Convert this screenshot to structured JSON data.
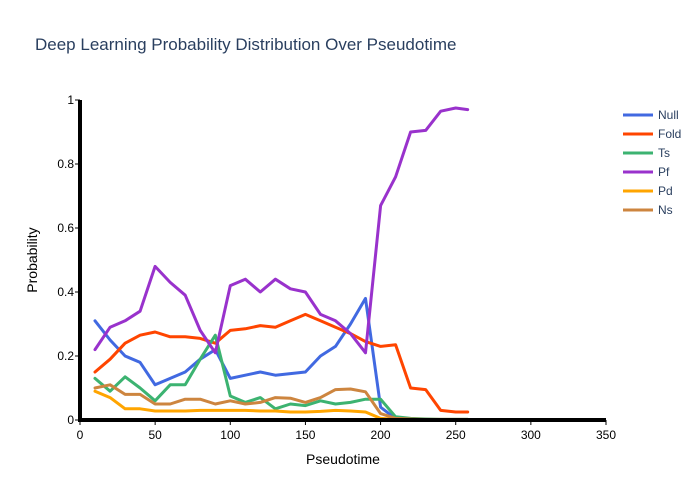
{
  "chart_data": {
    "type": "line",
    "title": "Deep Learning Probability Distribution Over Pseudotime",
    "xlabel": "Pseudotime",
    "ylabel": "Probability",
    "xlim": [
      0,
      350
    ],
    "ylim": [
      0,
      1
    ],
    "x_ticks": [
      "0",
      "50",
      "100",
      "150",
      "200",
      "250",
      "300",
      "350"
    ],
    "y_ticks": [
      "0",
      "0.2",
      "0.4",
      "0.6",
      "0.8",
      "1"
    ],
    "grid": false,
    "legend_position": "top-right",
    "x": [
      10,
      20,
      30,
      40,
      50,
      60,
      70,
      80,
      90,
      100,
      110,
      120,
      130,
      140,
      150,
      160,
      170,
      180,
      190,
      200,
      210,
      220,
      230,
      240,
      250,
      258
    ],
    "series": [
      {
        "name": "Null",
        "color": "#4169e1",
        "values": [
          0.31,
          0.25,
          0.2,
          0.18,
          0.11,
          0.13,
          0.15,
          0.19,
          0.22,
          0.13,
          0.14,
          0.15,
          0.14,
          0.145,
          0.15,
          0.2,
          0.23,
          0.3,
          0.38,
          0.04,
          0.004,
          0.002,
          0.001,
          0.001,
          0.001,
          0.001
        ]
      },
      {
        "name": "Fold",
        "color": "#ff4500",
        "values": [
          0.15,
          0.19,
          0.24,
          0.265,
          0.275,
          0.26,
          0.26,
          0.255,
          0.24,
          0.28,
          0.285,
          0.295,
          0.29,
          0.31,
          0.33,
          0.31,
          0.29,
          0.27,
          0.245,
          0.23,
          0.235,
          0.1,
          0.095,
          0.03,
          0.025,
          0.025
        ]
      },
      {
        "name": "Ts",
        "color": "#3cb371",
        "values": [
          0.13,
          0.09,
          0.135,
          0.1,
          0.06,
          0.11,
          0.11,
          0.19,
          0.265,
          0.075,
          0.055,
          0.07,
          0.035,
          0.05,
          0.045,
          0.06,
          0.05,
          0.055,
          0.065,
          0.065,
          0.01,
          0.005,
          0.003,
          0.002,
          0.002,
          0.002
        ]
      },
      {
        "name": "Pf",
        "color": "#9932cc",
        "values": [
          0.22,
          0.29,
          0.31,
          0.34,
          0.48,
          0.43,
          0.39,
          0.28,
          0.21,
          0.42,
          0.44,
          0.4,
          0.44,
          0.41,
          0.4,
          0.33,
          0.31,
          0.27,
          0.21,
          0.67,
          0.76,
          0.9,
          0.905,
          0.965,
          0.975,
          0.97
        ]
      },
      {
        "name": "Pd",
        "color": "#ffa500",
        "values": [
          0.09,
          0.07,
          0.035,
          0.035,
          0.028,
          0.028,
          0.028,
          0.03,
          0.03,
          0.03,
          0.03,
          0.028,
          0.028,
          0.025,
          0.025,
          0.027,
          0.03,
          0.028,
          0.025,
          0.005,
          0.002,
          0.001,
          0.001,
          0.001,
          0.001,
          0.001
        ]
      },
      {
        "name": "Ns",
        "color": "#cd853f",
        "values": [
          0.1,
          0.11,
          0.08,
          0.08,
          0.05,
          0.05,
          0.065,
          0.065,
          0.05,
          0.06,
          0.05,
          0.055,
          0.07,
          0.068,
          0.055,
          0.07,
          0.095,
          0.097,
          0.088,
          0.02,
          0.005,
          0.003,
          0.002,
          0.002,
          0.002,
          0.002
        ]
      }
    ]
  }
}
